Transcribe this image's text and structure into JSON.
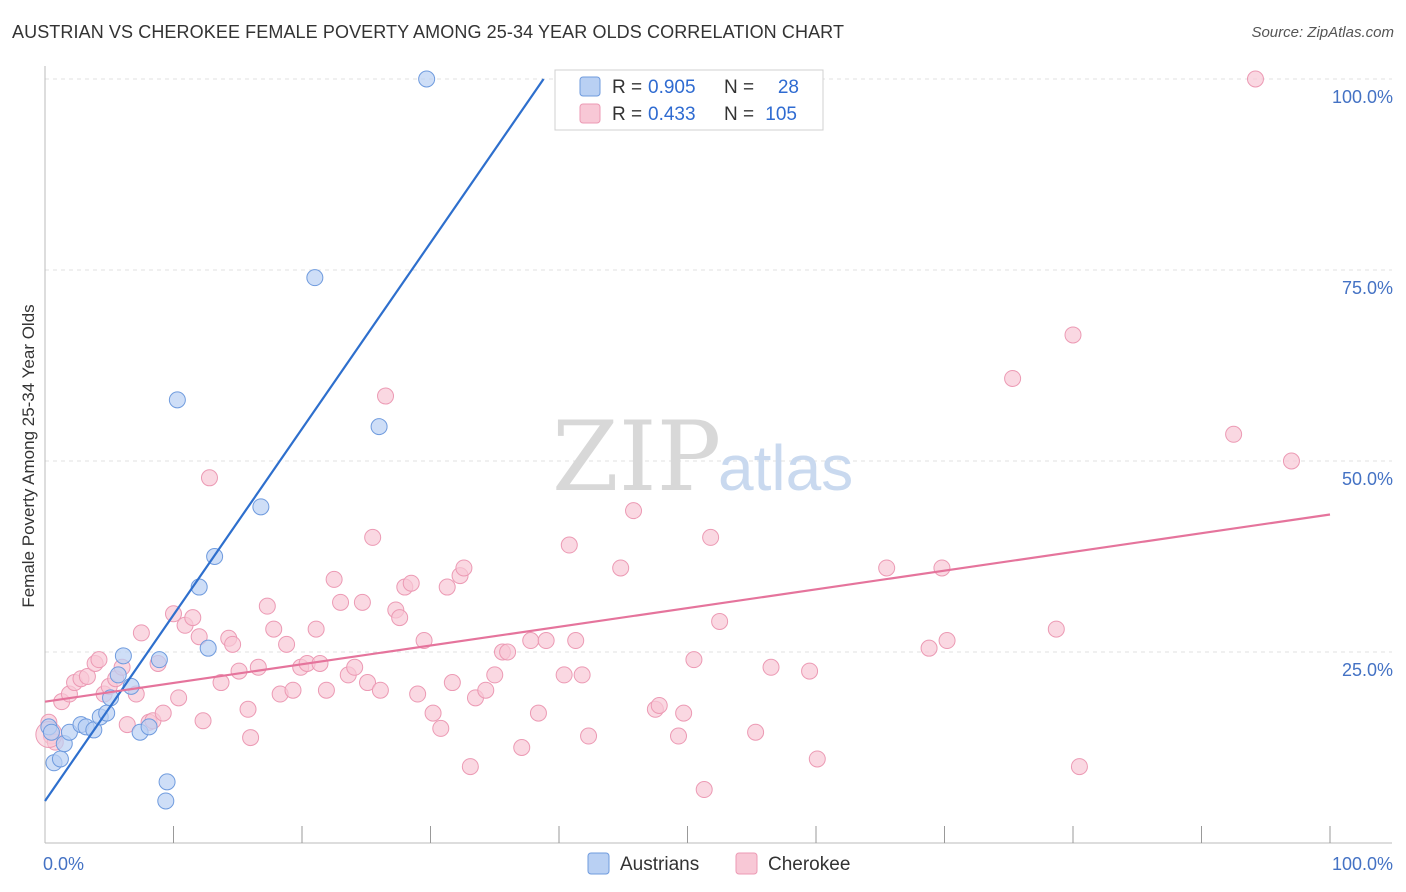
{
  "title": "AUSTRIAN VS CHEROKEE FEMALE POVERTY AMONG 25-34 YEAR OLDS CORRELATION CHART",
  "source": "Source: ZipAtlas.com",
  "watermark": {
    "zip": "ZIP",
    "atlas": "atlas"
  },
  "colors": {
    "austrians_fill": "#b9d0f3",
    "austrians_stroke": "#6f9bde",
    "austrians_line": "#2e6fcd",
    "cherokee_fill": "#f8c8d6",
    "cherokee_stroke": "#ec9ab4",
    "cherokee_line": "#e5749c",
    "grid": "#e0e0e0",
    "axis_text": "#4472c4"
  },
  "legend": {
    "rows": [
      {
        "r_label": "R =",
        "r_value": "0.905",
        "n_label": "N =",
        "n_value": "28"
      },
      {
        "r_label": "R =",
        "r_value": "0.433",
        "n_label": "N =",
        "n_value": "105"
      }
    ]
  },
  "chart_data": {
    "type": "scatter",
    "title": "AUSTRIAN VS CHEROKEE FEMALE POVERTY AMONG 25-34 YEAR OLDS CORRELATION CHART",
    "xlabel": "",
    "ylabel": "Female Poverty Among 25-34 Year Olds",
    "xlim": [
      0,
      100
    ],
    "ylim": [
      0,
      100
    ],
    "x_tick_labels": [
      "0.0%",
      "100.0%"
    ],
    "y_ticks": [
      25,
      50,
      75,
      100
    ],
    "y_tick_labels": [
      "25.0%",
      "50.0%",
      "75.0%",
      "100.0%"
    ],
    "grid": true,
    "legend_position": "top-center",
    "series": [
      {
        "name": "Austrians",
        "r": 0.905,
        "n": 28,
        "trend": {
          "x": [
            0,
            38.8
          ],
          "y": [
            5.5,
            100
          ]
        },
        "points": [
          [
            0.3,
            15.2
          ],
          [
            0.5,
            14.5
          ],
          [
            0.7,
            10.5
          ],
          [
            1.2,
            11.0
          ],
          [
            1.5,
            13.0
          ],
          [
            1.9,
            14.5
          ],
          [
            2.8,
            15.5
          ],
          [
            3.2,
            15.2
          ],
          [
            3.8,
            14.8
          ],
          [
            4.3,
            16.5
          ],
          [
            4.8,
            17.0
          ],
          [
            5.1,
            19.0
          ],
          [
            5.7,
            22.0
          ],
          [
            6.1,
            24.5
          ],
          [
            6.7,
            20.5
          ],
          [
            7.4,
            14.5
          ],
          [
            8.1,
            15.2
          ],
          [
            8.9,
            24.0
          ],
          [
            9.5,
            8.0
          ],
          [
            9.4,
            5.5
          ],
          [
            10.3,
            58.0
          ],
          [
            12.0,
            33.5
          ],
          [
            12.7,
            25.5
          ],
          [
            13.2,
            37.5
          ],
          [
            16.8,
            44.0
          ],
          [
            21.0,
            74.0
          ],
          [
            26.0,
            54.5
          ],
          [
            29.7,
            100.0
          ]
        ]
      },
      {
        "name": "Cherokee",
        "r": 0.433,
        "n": 105,
        "trend": {
          "x": [
            0,
            100
          ],
          "y": [
            18.5,
            43.0
          ]
        },
        "points": [
          [
            0.3,
            15.8
          ],
          [
            0.5,
            14.0
          ],
          [
            0.8,
            13.2
          ],
          [
            1.3,
            18.5
          ],
          [
            1.9,
            19.5
          ],
          [
            2.3,
            21.0
          ],
          [
            2.8,
            21.5
          ],
          [
            3.3,
            21.8
          ],
          [
            3.9,
            23.5
          ],
          [
            4.2,
            24.0
          ],
          [
            4.6,
            19.5
          ],
          [
            5.0,
            20.5
          ],
          [
            5.5,
            21.5
          ],
          [
            6.0,
            23.0
          ],
          [
            6.4,
            15.5
          ],
          [
            7.1,
            19.5
          ],
          [
            7.5,
            27.5
          ],
          [
            8.1,
            15.8
          ],
          [
            8.4,
            16.0
          ],
          [
            8.8,
            23.5
          ],
          [
            9.2,
            17.0
          ],
          [
            10.0,
            30.0
          ],
          [
            10.4,
            19.0
          ],
          [
            10.9,
            28.5
          ],
          [
            11.5,
            29.5
          ],
          [
            12.0,
            27.0
          ],
          [
            12.3,
            16.0
          ],
          [
            12.8,
            47.8
          ],
          [
            13.7,
            21.0
          ],
          [
            14.3,
            26.8
          ],
          [
            14.6,
            26.0
          ],
          [
            15.1,
            22.5
          ],
          [
            15.8,
            17.5
          ],
          [
            16.0,
            13.8
          ],
          [
            16.6,
            23.0
          ],
          [
            17.3,
            31.0
          ],
          [
            17.8,
            28.0
          ],
          [
            18.3,
            19.5
          ],
          [
            18.8,
            26.0
          ],
          [
            19.3,
            20.0
          ],
          [
            19.9,
            23.0
          ],
          [
            20.4,
            23.5
          ],
          [
            21.1,
            28.0
          ],
          [
            21.4,
            23.5
          ],
          [
            21.9,
            20.0
          ],
          [
            22.5,
            34.5
          ],
          [
            23.0,
            31.5
          ],
          [
            23.6,
            22.0
          ],
          [
            24.1,
            23.0
          ],
          [
            24.7,
            31.5
          ],
          [
            25.1,
            21.0
          ],
          [
            25.5,
            40.0
          ],
          [
            26.1,
            20.0
          ],
          [
            26.5,
            58.5
          ],
          [
            27.3,
            30.5
          ],
          [
            27.6,
            29.5
          ],
          [
            28.0,
            33.5
          ],
          [
            28.5,
            34.0
          ],
          [
            29.0,
            19.5
          ],
          [
            29.5,
            26.5
          ],
          [
            30.2,
            17.0
          ],
          [
            30.8,
            15.0
          ],
          [
            31.3,
            33.5
          ],
          [
            31.7,
            21.0
          ],
          [
            32.3,
            35.0
          ],
          [
            32.6,
            36.0
          ],
          [
            33.1,
            10.0
          ],
          [
            33.5,
            19.0
          ],
          [
            34.3,
            20.0
          ],
          [
            35.0,
            22.0
          ],
          [
            35.6,
            25.0
          ],
          [
            36.0,
            25.0
          ],
          [
            37.1,
            12.5
          ],
          [
            37.8,
            26.5
          ],
          [
            38.4,
            17.0
          ],
          [
            39.0,
            26.5
          ],
          [
            40.4,
            22.0
          ],
          [
            40.8,
            39.0
          ],
          [
            41.3,
            26.5
          ],
          [
            41.8,
            22.0
          ],
          [
            42.3,
            14.0
          ],
          [
            44.8,
            36.0
          ],
          [
            45.8,
            43.5
          ],
          [
            47.5,
            17.5
          ],
          [
            47.8,
            18.0
          ],
          [
            49.3,
            14.0
          ],
          [
            49.7,
            17.0
          ],
          [
            50.5,
            24.0
          ],
          [
            51.3,
            7.0
          ],
          [
            51.8,
            40.0
          ],
          [
            52.5,
            29.0
          ],
          [
            55.3,
            14.5
          ],
          [
            56.5,
            23.0
          ],
          [
            59.5,
            22.5
          ],
          [
            60.1,
            11.0
          ],
          [
            65.5,
            36.0
          ],
          [
            68.8,
            25.5
          ],
          [
            69.8,
            36.0
          ],
          [
            70.2,
            26.5
          ],
          [
            75.3,
            60.8
          ],
          [
            78.7,
            28.0
          ],
          [
            80.0,
            66.5
          ],
          [
            80.5,
            10.0
          ],
          [
            92.5,
            53.5
          ],
          [
            94.2,
            100.0
          ],
          [
            97.0,
            50.0
          ]
        ]
      }
    ]
  },
  "bottom_legend": {
    "items": [
      "Austrians",
      "Cherokee"
    ]
  }
}
